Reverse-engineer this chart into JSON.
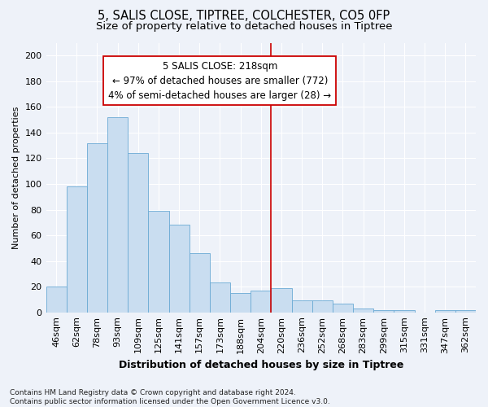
{
  "title": "5, SALIS CLOSE, TIPTREE, COLCHESTER, CO5 0FP",
  "subtitle": "Size of property relative to detached houses in Tiptree",
  "xlabel": "Distribution of detached houses by size in Tiptree",
  "ylabel": "Number of detached properties",
  "categories": [
    "46sqm",
    "62sqm",
    "78sqm",
    "93sqm",
    "109sqm",
    "125sqm",
    "141sqm",
    "157sqm",
    "173sqm",
    "188sqm",
    "204sqm",
    "220sqm",
    "236sqm",
    "252sqm",
    "268sqm",
    "283sqm",
    "299sqm",
    "315sqm",
    "331sqm",
    "347sqm",
    "362sqm"
  ],
  "values": [
    20,
    98,
    132,
    152,
    124,
    79,
    68,
    46,
    23,
    15,
    17,
    19,
    9,
    9,
    7,
    3,
    2,
    2,
    0,
    2,
    2
  ],
  "bar_color": "#c9ddf0",
  "bar_edge_color": "#6aaad4",
  "vline_x_index": 11,
  "vline_color": "#cc0000",
  "annotation_line1": "5 SALIS CLOSE: 218sqm",
  "annotation_line2": "← 97% of detached houses are smaller (772)",
  "annotation_line3": "4% of semi-detached houses are larger (28) →",
  "annotation_box_color": "#ffffff",
  "annotation_box_edge": "#cc0000",
  "ylim": [
    0,
    210
  ],
  "yticks": [
    0,
    20,
    40,
    60,
    80,
    100,
    120,
    140,
    160,
    180,
    200
  ],
  "footer": "Contains HM Land Registry data © Crown copyright and database right 2024.\nContains public sector information licensed under the Open Government Licence v3.0.",
  "background_color": "#eef2f9",
  "grid_color": "#ffffff",
  "title_fontsize": 10.5,
  "subtitle_fontsize": 9.5,
  "xlabel_fontsize": 9,
  "ylabel_fontsize": 8,
  "tick_fontsize": 8,
  "annotation_fontsize": 8.5,
  "footer_fontsize": 6.5
}
